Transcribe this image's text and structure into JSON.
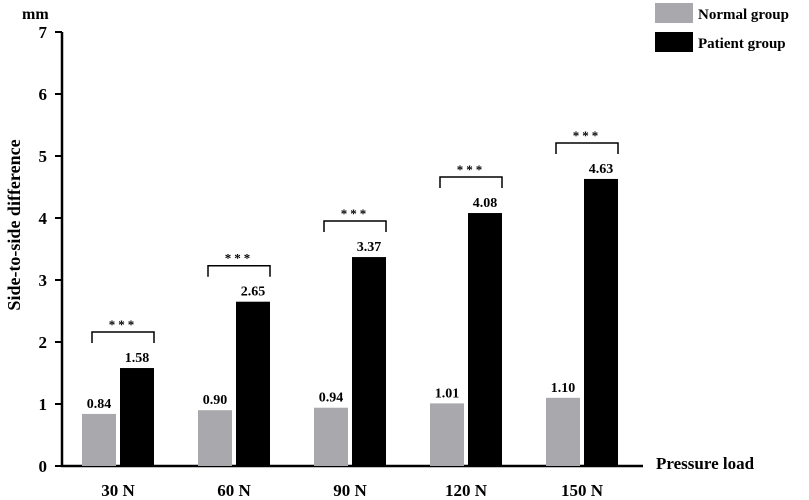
{
  "chart_data": {
    "type": "bar",
    "categories": [
      "30 N",
      "60 N",
      "90 N",
      "120 N",
      "150 N"
    ],
    "series": [
      {
        "name": "Normal group",
        "values": [
          0.84,
          0.9,
          0.94,
          1.01,
          1.1
        ],
        "value_labels": [
          "0.84",
          "0.90",
          "0.94",
          "1.01",
          "1.10"
        ],
        "color": "#a9a9ad"
      },
      {
        "name": "Patient group",
        "values": [
          1.58,
          2.65,
          3.37,
          4.08,
          4.63
        ],
        "value_labels": [
          "1.58",
          "2.65",
          "3.37",
          "4.08",
          "4.63"
        ],
        "color": "#000000"
      }
    ],
    "significance": [
      "***",
      "***",
      "***",
      "***",
      "***"
    ],
    "xlabel": "Pressure load",
    "ylabel": "Side-to-side difference",
    "yunit": "mm",
    "ylim": [
      0,
      7
    ],
    "yticks": [
      0,
      1,
      2,
      3,
      4,
      5,
      6,
      7
    ],
    "legend_position": "top-right",
    "grid": false
  }
}
